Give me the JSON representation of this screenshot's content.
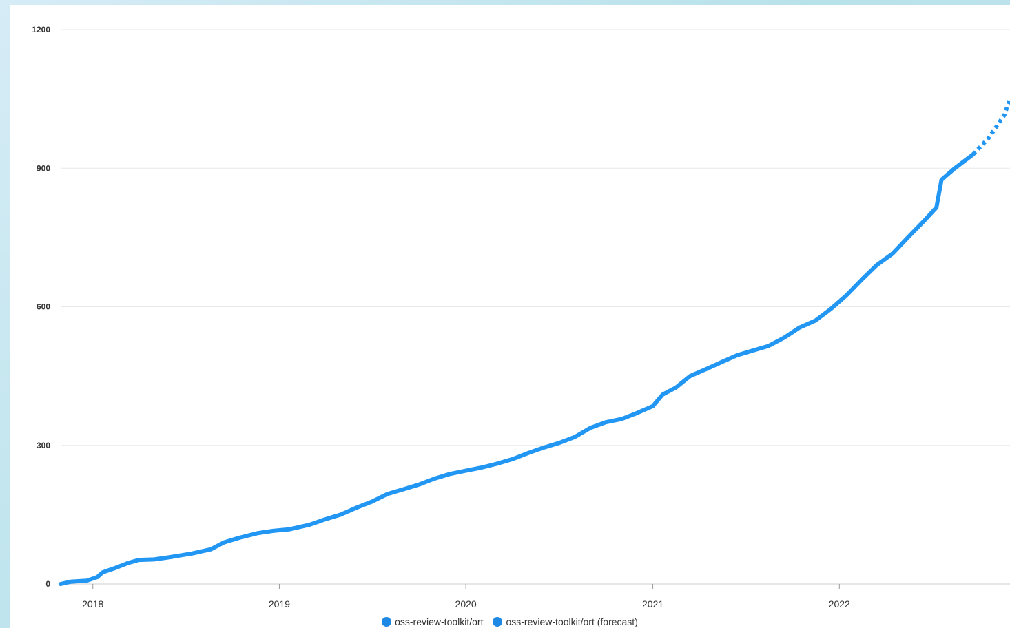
{
  "chart_data": {
    "type": "line",
    "title": "",
    "xlabel": "",
    "ylabel": "",
    "ylim": [
      0,
      1200
    ],
    "xlim": [
      "2017-10-30",
      "2022-12-01"
    ],
    "y_ticks": [
      "0",
      "300",
      "600",
      "900",
      "1200"
    ],
    "x_ticks": [
      "2018",
      "2019",
      "2020",
      "2021",
      "2022"
    ],
    "grid": "horizontal",
    "legend_position": "bottom-center",
    "colors": {
      "series": "#2196f3",
      "forecast": "#2196f3",
      "legend_dot": "#1e88e5"
    },
    "series": [
      {
        "name": "oss-review-toolkit/ort",
        "style": "solid",
        "points": [
          [
            "2017-10-30",
            0
          ],
          [
            "2017-11-20",
            5
          ],
          [
            "2017-12-20",
            7
          ],
          [
            "2018-01-10",
            15
          ],
          [
            "2018-01-20",
            25
          ],
          [
            "2018-02-15",
            35
          ],
          [
            "2018-03-10",
            45
          ],
          [
            "2018-04-01",
            52
          ],
          [
            "2018-05-01",
            53
          ],
          [
            "2018-06-01",
            58
          ],
          [
            "2018-07-15",
            66
          ],
          [
            "2018-08-20",
            75
          ],
          [
            "2018-09-15",
            90
          ],
          [
            "2018-10-15",
            100
          ],
          [
            "2018-11-20",
            110
          ],
          [
            "2018-12-20",
            115
          ],
          [
            "2019-01-20",
            118
          ],
          [
            "2019-03-01",
            128
          ],
          [
            "2019-04-01",
            140
          ],
          [
            "2019-05-01",
            150
          ],
          [
            "2019-06-01",
            165
          ],
          [
            "2019-07-01",
            178
          ],
          [
            "2019-08-01",
            195
          ],
          [
            "2019-09-01",
            205
          ],
          [
            "2019-10-01",
            215
          ],
          [
            "2019-11-01",
            228
          ],
          [
            "2019-12-01",
            238
          ],
          [
            "2020-01-01",
            245
          ],
          [
            "2020-02-01",
            252
          ],
          [
            "2020-03-01",
            260
          ],
          [
            "2020-04-01",
            270
          ],
          [
            "2020-05-01",
            283
          ],
          [
            "2020-06-01",
            295
          ],
          [
            "2020-07-01",
            305
          ],
          [
            "2020-08-01",
            318
          ],
          [
            "2020-09-01",
            338
          ],
          [
            "2020-10-01",
            350
          ],
          [
            "2020-11-01",
            357
          ],
          [
            "2020-12-01",
            370
          ],
          [
            "2021-01-01",
            385
          ],
          [
            "2021-01-20",
            410
          ],
          [
            "2021-02-15",
            425
          ],
          [
            "2021-03-15",
            450
          ],
          [
            "2021-04-15",
            465
          ],
          [
            "2021-05-15",
            480
          ],
          [
            "2021-06-15",
            495
          ],
          [
            "2021-07-15",
            505
          ],
          [
            "2021-08-15",
            515
          ],
          [
            "2021-09-15",
            533
          ],
          [
            "2021-10-15",
            555
          ],
          [
            "2021-11-15",
            570
          ],
          [
            "2021-12-15",
            595
          ],
          [
            "2022-01-15",
            625
          ],
          [
            "2022-02-15",
            660
          ],
          [
            "2022-03-15",
            690
          ],
          [
            "2022-04-15",
            715
          ],
          [
            "2022-05-15",
            750
          ],
          [
            "2022-06-15",
            785
          ],
          [
            "2022-07-10",
            815
          ],
          [
            "2022-07-20",
            875
          ],
          [
            "2022-08-15",
            900
          ],
          [
            "2022-09-20",
            930
          ]
        ]
      },
      {
        "name": "oss-review-toolkit/ort (forecast)",
        "style": "dotted",
        "points": [
          [
            "2022-09-20",
            930
          ],
          [
            "2022-10-20",
            965
          ],
          [
            "2022-11-20",
            1015
          ],
          [
            "2022-12-01",
            1050
          ]
        ]
      }
    ]
  }
}
